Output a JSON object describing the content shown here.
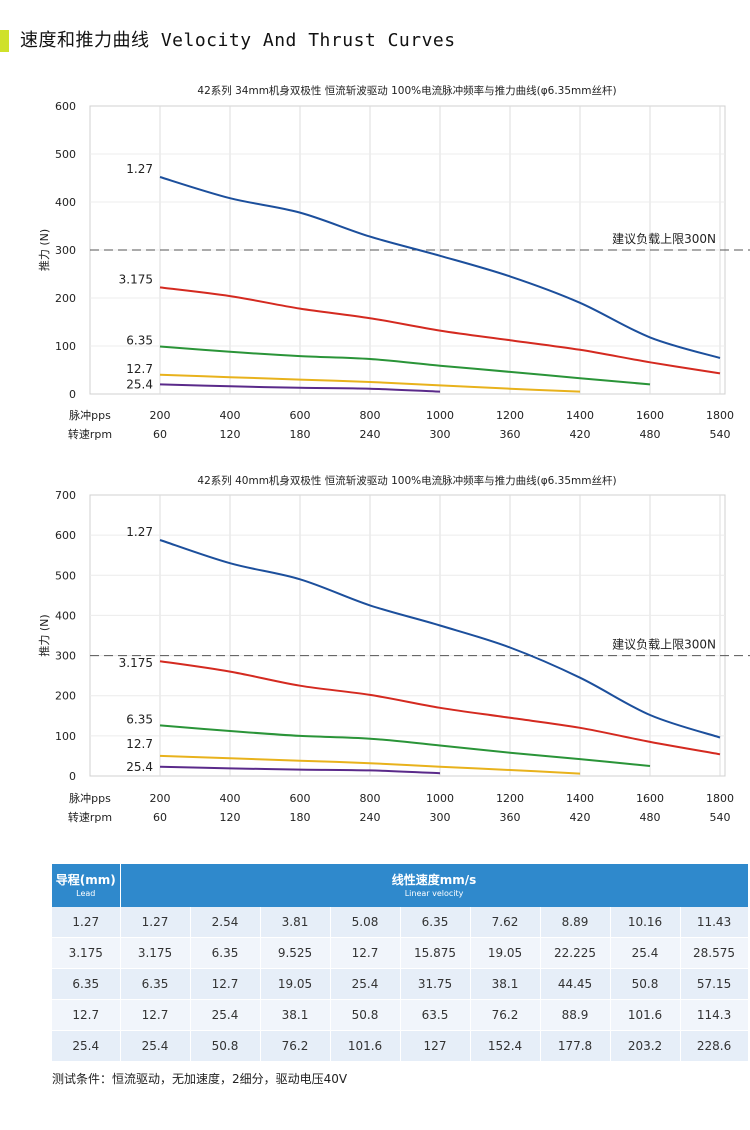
{
  "header": {
    "title": "速度和推力曲线 Velocity And Thrust Curves"
  },
  "chart_data": [
    {
      "type": "line",
      "title": "42系列 34mm机身双极性 恒流斩波驱动 100%电流脉冲频率与推力曲线(φ6.35mm丝杆)",
      "ylabel": "推力 (N)",
      "ylim": [
        0,
        600
      ],
      "yticks": [
        "0",
        "100",
        "200",
        "300",
        "400",
        "500",
        "600"
      ],
      "x_row_labels": [
        "脉冲pps",
        "转速rpm"
      ],
      "x_pps": [
        "200",
        "400",
        "600",
        "800",
        "1000",
        "1200",
        "1400",
        "1600",
        "1800"
      ],
      "x_rpm": [
        "60",
        "120",
        "180",
        "240",
        "300",
        "360",
        "420",
        "480",
        "540"
      ],
      "xlim": [
        200,
        1800
      ],
      "limit": {
        "value": 300,
        "label": "建议负载上限300N"
      },
      "grid": "vertical",
      "series": [
        {
          "name": "1.27",
          "color": "#1c4f9c",
          "x": [
            200,
            400,
            600,
            800,
            1000,
            1200,
            1400,
            1600,
            1800
          ],
          "values": [
            452,
            408,
            378,
            328,
            288,
            245,
            190,
            118,
            75
          ]
        },
        {
          "name": "3.175",
          "color": "#d42a20",
          "x": [
            200,
            400,
            600,
            800,
            1000,
            1200,
            1400,
            1600,
            1800
          ],
          "values": [
            222,
            204,
            178,
            158,
            132,
            112,
            92,
            66,
            43
          ]
        },
        {
          "name": "6.35",
          "color": "#2a9438",
          "x": [
            200,
            400,
            600,
            800,
            1000,
            1200,
            1400,
            1600
          ],
          "values": [
            99,
            88,
            79,
            73,
            59,
            46,
            33,
            20
          ]
        },
        {
          "name": "12.7",
          "color": "#e8b21c",
          "x": [
            200,
            400,
            600,
            800,
            1000,
            1200,
            1400
          ],
          "values": [
            40,
            35,
            30,
            25,
            18,
            11,
            5
          ]
        },
        {
          "name": "25.4",
          "color": "#5a2a8a",
          "x": [
            200,
            400,
            600,
            800,
            1000
          ],
          "values": [
            20,
            16,
            13,
            11,
            5
          ]
        }
      ]
    },
    {
      "type": "line",
      "title": "42系列 40mm机身双极性 恒流斩波驱动 100%电流脉冲频率与推力曲线(φ6.35mm丝杆)",
      "ylabel": "推力 (N)",
      "ylim": [
        0,
        700
      ],
      "yticks": [
        "0",
        "100",
        "200",
        "300",
        "400",
        "500",
        "600",
        "700"
      ],
      "x_row_labels": [
        "脉冲pps",
        "转速rpm"
      ],
      "x_pps": [
        "200",
        "400",
        "600",
        "800",
        "1000",
        "1200",
        "1400",
        "1600",
        "1800"
      ],
      "x_rpm": [
        "60",
        "120",
        "180",
        "240",
        "300",
        "360",
        "420",
        "480",
        "540"
      ],
      "xlim": [
        200,
        1800
      ],
      "limit": {
        "value": 300,
        "label": "建议负载上限300N"
      },
      "grid": "vertical",
      "series": [
        {
          "name": "1.27",
          "color": "#1c4f9c",
          "x": [
            200,
            400,
            600,
            800,
            1000,
            1200,
            1400,
            1600,
            1800
          ],
          "values": [
            588,
            530,
            490,
            425,
            375,
            320,
            245,
            152,
            96
          ]
        },
        {
          "name": "3.175",
          "color": "#d42a20",
          "x": [
            200,
            400,
            600,
            800,
            1000,
            1200,
            1400,
            1600,
            1800
          ],
          "values": [
            286,
            260,
            225,
            202,
            170,
            145,
            120,
            85,
            54
          ]
        },
        {
          "name": "6.35",
          "color": "#2a9438",
          "x": [
            200,
            400,
            600,
            800,
            1000,
            1200,
            1400,
            1600
          ],
          "values": [
            126,
            112,
            100,
            93,
            76,
            58,
            42,
            25
          ]
        },
        {
          "name": "12.7",
          "color": "#e8b21c",
          "x": [
            200,
            400,
            600,
            800,
            1000,
            1200,
            1400
          ],
          "values": [
            50,
            44,
            38,
            32,
            23,
            15,
            6
          ]
        },
        {
          "name": "25.4",
          "color": "#5a2a8a",
          "x": [
            200,
            400,
            600,
            800,
            1000
          ],
          "values": [
            23,
            19,
            16,
            14,
            7
          ]
        }
      ]
    }
  ],
  "table": {
    "lead_header": "导程(mm)",
    "lead_header_en": "Lead",
    "speed_header": "线性速度mm/s",
    "speed_header_en": "Linear velocity",
    "rows": [
      [
        "1.27",
        "1.27",
        "2.54",
        "3.81",
        "5.08",
        "6.35",
        "7.62",
        "8.89",
        "10.16",
        "11.43"
      ],
      [
        "3.175",
        "3.175",
        "6.35",
        "9.525",
        "12.7",
        "15.875",
        "19.05",
        "22.225",
        "25.4",
        "28.575"
      ],
      [
        "6.35",
        "6.35",
        "12.7",
        "19.05",
        "25.4",
        "31.75",
        "38.1",
        "44.45",
        "50.8",
        "57.15"
      ],
      [
        "12.7",
        "12.7",
        "25.4",
        "38.1",
        "50.8",
        "63.5",
        "76.2",
        "88.9",
        "101.6",
        "114.3"
      ],
      [
        "25.4",
        "25.4",
        "50.8",
        "76.2",
        "101.6",
        "127",
        "152.4",
        "177.8",
        "203.2",
        "228.6"
      ]
    ]
  },
  "note": "测试条件：恒流驱动，无加速度，2细分，驱动电压40V"
}
